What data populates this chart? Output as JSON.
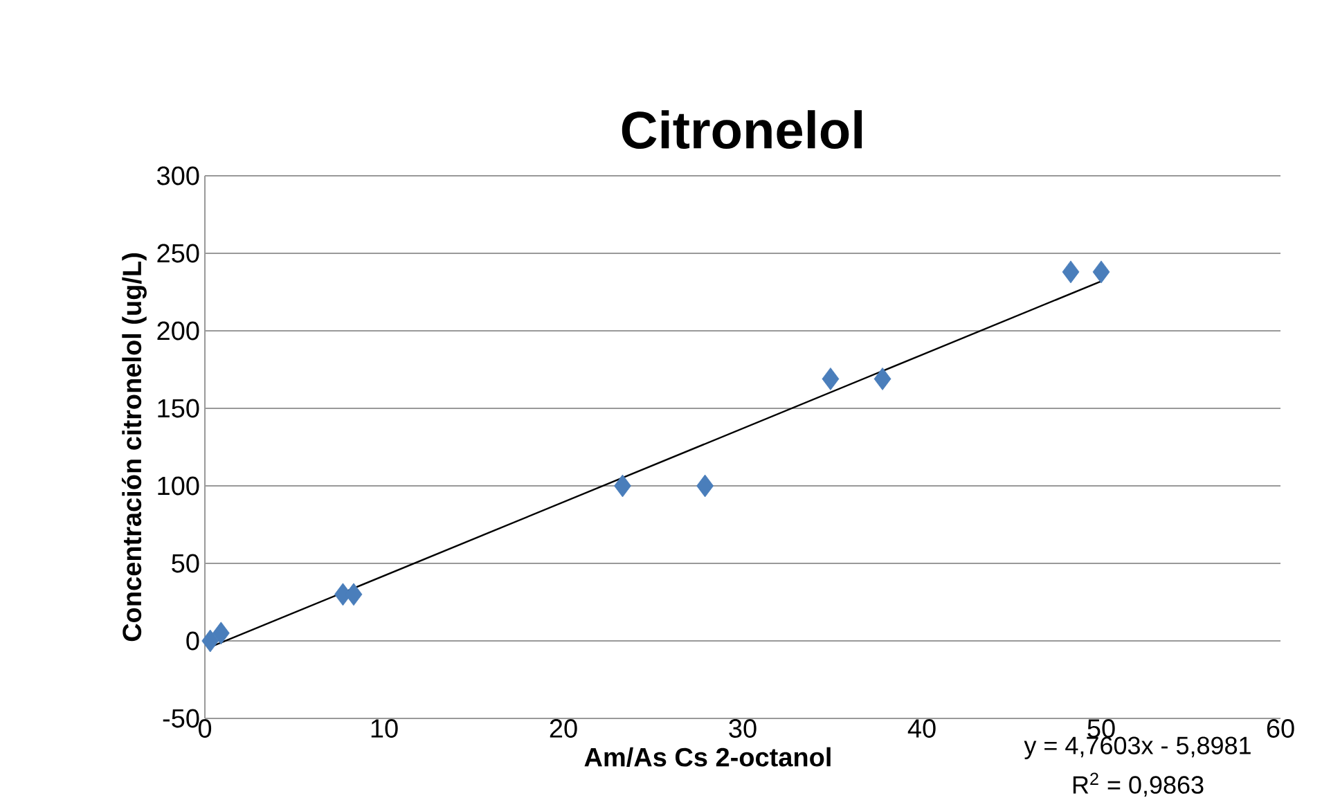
{
  "chart_data": {
    "type": "scatter",
    "title": "Citronelol",
    "xlabel": "Am/As Cs 2-octanol",
    "ylabel": "Concentración citronelol (ug/L)",
    "xlim": [
      0,
      60
    ],
    "ylim": [
      -50,
      300
    ],
    "xticks": [
      0,
      10,
      20,
      30,
      40,
      50,
      60
    ],
    "yticks": [
      -50,
      0,
      50,
      100,
      150,
      200,
      250,
      300
    ],
    "grid": "y",
    "marker": "diamond",
    "series": [
      {
        "color": "#4a7ebb",
        "x": [
          0.3,
          0.9,
          7.7,
          8.3,
          23.3,
          27.9,
          34.9,
          37.8,
          48.3,
          50.0
        ],
        "values": [
          0,
          5,
          30,
          30,
          100,
          100,
          169,
          169,
          238,
          238
        ]
      },
      {
        "type": "line",
        "color": "#000000",
        "marker": "none",
        "x": [
          0.3,
          50.0
        ],
        "values": [
          -4,
          232
        ]
      }
    ],
    "annotations": [
      "y = 4,7603x - 5,8981",
      "R$^{2}$ = 0,9863"
    ]
  }
}
